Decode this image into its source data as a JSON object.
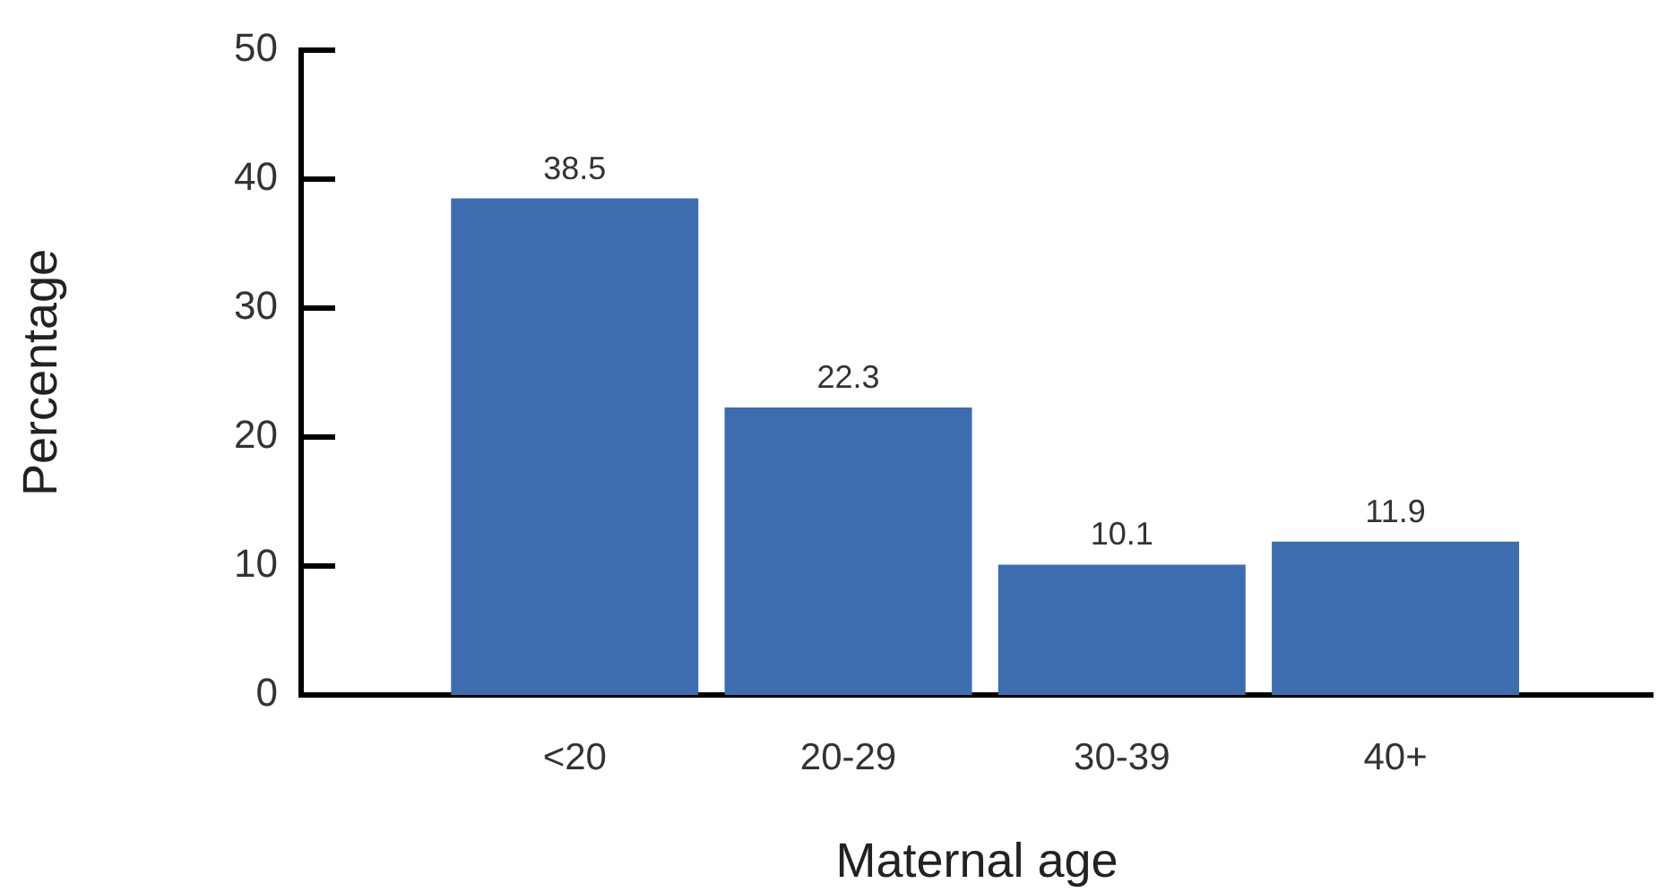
{
  "chart_data": {
    "type": "bar",
    "xlabel": "Maternal age",
    "ylabel": "Percentage",
    "categories": [
      "<20",
      "20-29",
      "30-39",
      "40+"
    ],
    "values": [
      38.5,
      22.3,
      10.1,
      11.9
    ],
    "color": "#3d6daf",
    "ylim": [
      0,
      50
    ],
    "yticks": [
      0,
      10,
      20,
      30,
      40,
      50
    ],
    "data_labels": true
  }
}
